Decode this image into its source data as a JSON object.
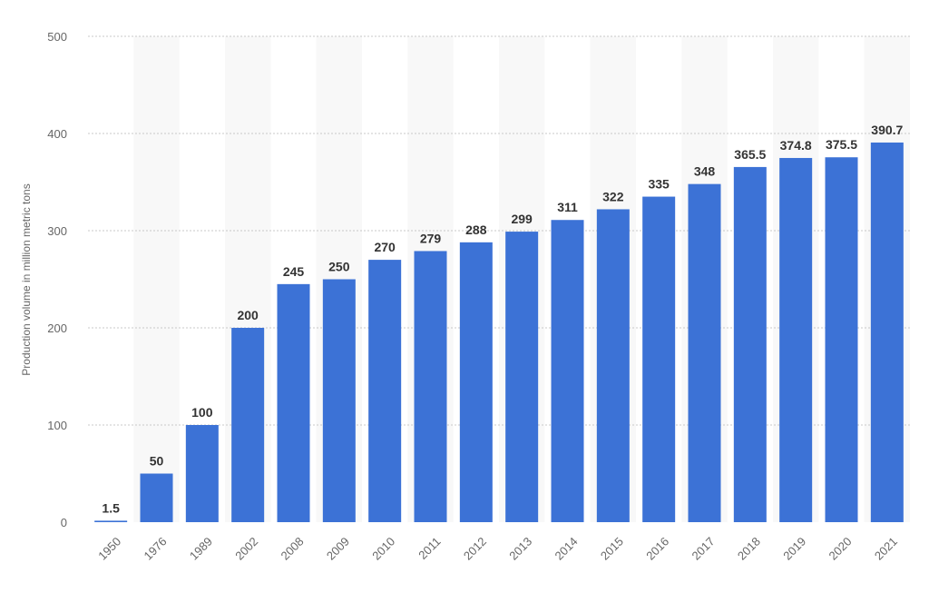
{
  "chart_data": {
    "type": "bar",
    "title": "",
    "xlabel": "",
    "ylabel": "Production volume in million metric tons",
    "ylim": [
      0,
      500
    ],
    "yticks": [
      0,
      100,
      200,
      300,
      400,
      500
    ],
    "grid": true,
    "legend": "none",
    "categories": [
      "1950",
      "1976",
      "1989",
      "2002",
      "2008",
      "2009",
      "2010",
      "2011",
      "2012",
      "2013",
      "2014",
      "2015",
      "2016",
      "2017",
      "2018",
      "2019",
      "2020",
      "2021"
    ],
    "value_labels": [
      "1.5",
      "50",
      "100",
      "200",
      "245",
      "250",
      "270",
      "279",
      "288",
      "299",
      "311",
      "322",
      "335",
      "348",
      "365.5",
      "374.8",
      "375.5",
      "390.7"
    ],
    "series": [
      {
        "values": [
          1.5,
          50,
          100,
          200,
          245,
          250,
          270,
          279,
          288,
          299,
          311,
          322,
          335,
          348,
          365.5,
          374.8,
          375.5,
          390.7
        ],
        "color": "#3c72d6"
      }
    ],
    "band_color": "#f8f8f8",
    "grid_color": "#c8c8c8"
  }
}
